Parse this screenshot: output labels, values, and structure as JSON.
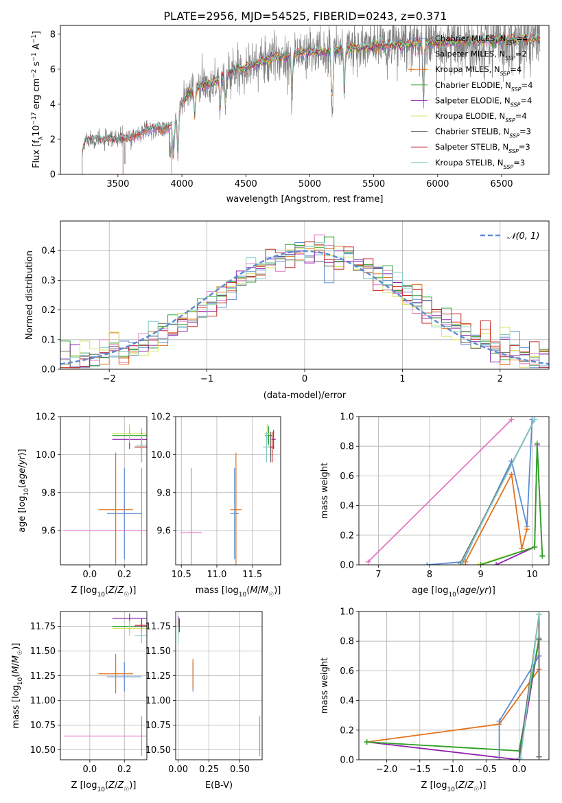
{
  "title": "PLATE=2956, MJD=54525, FIBERID=0243, z=0.371",
  "colors": {
    "Chabrier MILES": "#5b8bd6",
    "Salpeter MILES": "#e377c2",
    "Kroupa MILES": "#e37119",
    "Chabrier ELODIE": "#2ca02c",
    "Salpeter ELODIE": "#8e24aa",
    "Kroupa ELODIE": "#d4e157",
    "Chabrier STELIB": "#666666",
    "Salpeter STELIB": "#c62828",
    "Kroupa STELIB": "#80cbc4",
    "data": "#808080",
    "normal": "#5b8bd6",
    "grid": "#b0b0b0"
  },
  "chart_data": [
    {
      "id": "spectrum",
      "type": "line",
      "xlabel": "wavelength [Angstrom, rest frame]",
      "ylabel": "Flux [fλ10⁻¹⁷ erg cm⁻² s⁻¹ A⁻¹]",
      "xlim": [
        3050,
        6870
      ],
      "ylim": [
        0,
        8.5
      ],
      "xticks": [
        3500,
        4000,
        4500,
        5000,
        5500,
        6000,
        6500
      ],
      "yticks": [
        0,
        2,
        4,
        6,
        8
      ],
      "grid": false,
      "legend_position": "lower-right",
      "legend": [
        {
          "label": "Chabrier MILES, N",
          "sub": "SSP",
          "tail": "=4"
        },
        {
          "label": "Salpeter MILES, N",
          "sub": "SSP",
          "tail": "=2"
        },
        {
          "label": "Kroupa MILES, N",
          "sub": "SSP",
          "tail": "=4"
        },
        {
          "label": "Chabrier ELODIE, N",
          "sub": "SSP",
          "tail": "=4"
        },
        {
          "label": "Salpeter ELODIE, N",
          "sub": "SSP",
          "tail": "=4"
        },
        {
          "label": "Kroupa ELODIE, N",
          "sub": "SSP",
          "tail": "=4"
        },
        {
          "label": "Chabrier STELIB, N",
          "sub": "SSP",
          "tail": "=3"
        },
        {
          "label": "Salpeter STELIB, N",
          "sub": "SSP",
          "tail": "=3"
        },
        {
          "label": "Kroupa STELIB, N",
          "sub": "SSP",
          "tail": "=3"
        }
      ],
      "continuum": {
        "x": [
          3220,
          3250,
          3300,
          3400,
          3500,
          3600,
          3700,
          3800,
          3850,
          3900,
          3950,
          4000,
          4050,
          4100,
          4200,
          4300,
          4400,
          4500,
          4600,
          4700,
          4800,
          4900,
          5000,
          5100,
          5200,
          5300,
          5400,
          5500,
          5600,
          5700,
          5800,
          5900,
          6000,
          6100,
          6200,
          6300,
          6400,
          6500,
          6600,
          6700,
          6800
        ],
        "y": [
          1.2,
          2.0,
          2.0,
          1.95,
          2.0,
          2.1,
          2.4,
          2.7,
          2.5,
          2.7,
          3.3,
          4.0,
          4.6,
          4.9,
          5.1,
          5.5,
          5.9,
          6.1,
          6.4,
          6.6,
          6.7,
          6.9,
          6.95,
          7.0,
          7.1,
          7.2,
          7.2,
          7.3,
          7.35,
          7.4,
          7.45,
          7.5,
          7.5,
          7.55,
          7.6,
          7.6,
          7.65,
          7.7,
          7.7,
          7.7,
          7.7
        ]
      },
      "model_starts": {
        "Chabrier MILES": 3540,
        "Salpeter MILES": 3540,
        "Kroupa MILES": 3540,
        "Chabrier ELODIE": 3920,
        "Salpeter ELODIE": 3920,
        "Kroupa ELODIE": 3920,
        "Chabrier STELIB": 3220,
        "Salpeter STELIB": 3220,
        "Kroupa STELIB": 3220
      }
    },
    {
      "id": "residuals",
      "type": "histogram",
      "xlabel": "(data-model)/error",
      "ylabel": "Normed distribution",
      "xlim": [
        -2.5,
        2.5
      ],
      "ylim": [
        0,
        0.5
      ],
      "xticks": [
        -2,
        -1,
        0,
        1,
        2
      ],
      "yticks": [
        0.0,
        0.1,
        0.2,
        0.3,
        0.4
      ],
      "grid": true,
      "legend_position": "top-right",
      "legend": "𝒩(0, 1)",
      "bin_width": 0.1
    },
    {
      "id": "age_vs_Z",
      "type": "errorbar",
      "xlabel": "Z [log₁₀(Z/Z☉)]",
      "ylabel": "age  [log₁₀(age/yr)]",
      "xlim": [
        -0.17,
        0.33
      ],
      "ylim": [
        9.42,
        10.2
      ],
      "xticks": [
        0.0,
        0.2
      ],
      "yticks": [
        9.6,
        9.8,
        10.0,
        10.2
      ],
      "grid": true,
      "points": [
        {
          "model": "Chabrier MILES",
          "x": 0.2,
          "y": 9.69,
          "xerr": 0.1,
          "yerr": 0.24
        },
        {
          "model": "Salpeter MILES",
          "x": 0.3,
          "y": 9.6,
          "xerr": 0.45,
          "yerr": 0.33
        },
        {
          "model": "Kroupa MILES",
          "x": 0.15,
          "y": 9.71,
          "xerr": 0.1,
          "yerr": 0.3
        },
        {
          "model": "Chabrier ELODIE",
          "x": 0.23,
          "y": 10.1,
          "xerr": 0.1,
          "yerr": 0.05
        },
        {
          "model": "Salpeter ELODIE",
          "x": 0.23,
          "y": 10.08,
          "xerr": 0.1,
          "yerr": 0.05
        },
        {
          "model": "Kroupa ELODIE",
          "x": 0.23,
          "y": 10.11,
          "xerr": 0.1,
          "yerr": 0.05
        },
        {
          "model": "Chabrier STELIB",
          "x": 0.3,
          "y": 10.04,
          "xerr": 0.04,
          "yerr": 0.08
        },
        {
          "model": "Salpeter STELIB",
          "x": 0.3,
          "y": 10.04,
          "xerr": 0.04,
          "yerr": 0.08
        },
        {
          "model": "Kroupa STELIB",
          "x": 0.3,
          "y": 10.05,
          "xerr": 0.03,
          "yerr": 0.09
        }
      ]
    },
    {
      "id": "age_vs_mass",
      "type": "errorbar",
      "xlabel": "mass [log₁₀(M/M☉)]",
      "ylabel": "",
      "xlim": [
        10.42,
        11.9
      ],
      "ylim": [
        9.42,
        10.2
      ],
      "xticks": [
        10.5,
        11.0,
        11.5
      ],
      "yticks": [
        9.6,
        9.8,
        10.0,
        10.2
      ],
      "grid": true,
      "points": [
        {
          "model": "Chabrier MILES",
          "x": 11.25,
          "y": 9.69,
          "xerr": 0.06,
          "yerr": 0.24
        },
        {
          "model": "Salpeter MILES",
          "x": 10.64,
          "y": 9.59,
          "xerr": 0.15,
          "yerr": 0.34
        },
        {
          "model": "Kroupa MILES",
          "x": 11.27,
          "y": 9.71,
          "xerr": 0.08,
          "yerr": 0.3
        },
        {
          "model": "Chabrier ELODIE",
          "x": 11.73,
          "y": 10.1,
          "xerr": 0.05,
          "yerr": 0.05
        },
        {
          "model": "Salpeter ELODIE",
          "x": 11.8,
          "y": 10.08,
          "xerr": 0.03,
          "yerr": 0.05
        },
        {
          "model": "Kroupa ELODIE",
          "x": 11.71,
          "y": 10.11,
          "xerr": 0.05,
          "yerr": 0.05
        },
        {
          "model": "Chabrier STELIB",
          "x": 11.76,
          "y": 10.04,
          "xerr": 0.03,
          "yerr": 0.08
        },
        {
          "model": "Salpeter STELIB",
          "x": 11.78,
          "y": 10.04,
          "xerr": 0.03,
          "yerr": 0.08
        },
        {
          "model": "Kroupa STELIB",
          "x": 11.7,
          "y": 10.04,
          "xerr": 0.05,
          "yerr": 0.08
        }
      ]
    },
    {
      "id": "massweight_vs_age",
      "type": "line",
      "xlabel": "age  [log₁₀(age/yr)]",
      "ylabel": "mass weight",
      "xlim": [
        6.62,
        10.33
      ],
      "ylim": [
        0,
        1.0
      ],
      "xticks": [
        7,
        8,
        9,
        10
      ],
      "yticks": [
        0.0,
        0.2,
        0.4,
        0.6,
        0.8,
        1.0
      ],
      "grid": true,
      "series": [
        {
          "model": "Salpeter MILES",
          "x": [
            6.8,
            9.6
          ],
          "y": [
            0.02,
            0.98
          ]
        },
        {
          "model": "Chabrier MILES",
          "x": [
            7.95,
            8.65,
            9.6,
            9.9,
            10.0
          ],
          "y": [
            0.0,
            0.02,
            0.7,
            0.26,
            0.98
          ]
        },
        {
          "model": "Kroupa MILES",
          "x": [
            8.7,
            8.7,
            9.6,
            9.8,
            9.9
          ],
          "y": [
            0.0,
            0.02,
            0.61,
            0.11,
            0.24
          ]
        },
        {
          "model": "Salpeter ELODIE",
          "x": [
            9.3,
            10.05,
            10.1,
            10.2
          ],
          "y": [
            0.0,
            0.12,
            0.81,
            0.06
          ]
        },
        {
          "model": "Kroupa ELODIE",
          "x": [
            8.95,
            10.05,
            10.1,
            10.2
          ],
          "y": [
            0.0,
            0.12,
            0.82,
            0.06
          ]
        },
        {
          "model": "Chabrier ELODIE",
          "x": [
            9.0,
            10.05,
            10.1,
            10.2
          ],
          "y": [
            0.0,
            0.12,
            0.82,
            0.06
          ]
        },
        {
          "model": "Chabrier STELIB",
          "x": [
            8.6,
            10.05
          ],
          "y": [
            0.01,
            0.98
          ]
        },
        {
          "model": "Kroupa STELIB",
          "x": [
            8.62,
            10.05
          ],
          "y": [
            0.01,
            0.98
          ]
        }
      ]
    },
    {
      "id": "mass_vs_Z",
      "type": "errorbar",
      "xlabel": "Z [log₁₀(Z/Z☉)]",
      "ylabel": "mass [log₁₀(M/M☉)]",
      "xlim": [
        -0.17,
        0.33
      ],
      "ylim": [
        10.4,
        11.9
      ],
      "xticks": [
        0.0,
        0.2
      ],
      "yticks": [
        10.5,
        10.75,
        11.0,
        11.25,
        11.5,
        11.75
      ],
      "grid": true,
      "points": [
        {
          "model": "Chabrier MILES",
          "x": 0.2,
          "y": 11.24,
          "xerr": 0.1,
          "yerr": 0.15
        },
        {
          "model": "Salpeter MILES",
          "x": 0.3,
          "y": 10.64,
          "xerr": 0.45,
          "yerr": 0.2
        },
        {
          "model": "Kroupa MILES",
          "x": 0.15,
          "y": 11.27,
          "xerr": 0.1,
          "yerr": 0.2
        },
        {
          "model": "Chabrier ELODIE",
          "x": 0.23,
          "y": 11.75,
          "xerr": 0.1,
          "yerr": 0.08
        },
        {
          "model": "Salpeter ELODIE",
          "x": 0.23,
          "y": 11.83,
          "xerr": 0.1,
          "yerr": 0.05
        },
        {
          "model": "Kroupa ELODIE",
          "x": 0.23,
          "y": 11.73,
          "xerr": 0.1,
          "yerr": 0.08
        },
        {
          "model": "Chabrier STELIB",
          "x": 0.3,
          "y": 11.75,
          "xerr": 0.04,
          "yerr": 0.07
        },
        {
          "model": "Salpeter STELIB",
          "x": 0.3,
          "y": 11.76,
          "xerr": 0.04,
          "yerr": 0.07
        },
        {
          "model": "Kroupa STELIB",
          "x": 0.3,
          "y": 11.66,
          "xerr": 0.04,
          "yerr": 0.08
        }
      ]
    },
    {
      "id": "mass_vs_ebv",
      "type": "errorbar",
      "xlabel": "E(B-V)",
      "ylabel": "",
      "xlim": [
        -0.02,
        0.68
      ],
      "ylim": [
        10.4,
        11.9
      ],
      "xticks": [
        0.0,
        0.25,
        0.5
      ],
      "yticks": [
        10.5,
        10.75,
        11.0,
        11.25,
        11.5,
        11.75
      ],
      "grid": true,
      "points": [
        {
          "model": "Chabrier MILES",
          "x": 0.12,
          "y": 11.24,
          "xerr": 0.0,
          "yerr": 0.15
        },
        {
          "model": "Salpeter MILES",
          "x": 0.66,
          "y": 10.64,
          "xerr": 0.0,
          "yerr": 0.2
        },
        {
          "model": "Kroupa MILES",
          "x": 0.12,
          "y": 11.27,
          "xerr": 0.0,
          "yerr": 0.15
        },
        {
          "model": "Chabrier ELODIE",
          "x": 0.0,
          "y": 11.75,
          "xerr": 0.0,
          "yerr": 0.08
        },
        {
          "model": "Salpeter ELODIE",
          "x": 0.0,
          "y": 11.8,
          "xerr": 0.0,
          "yerr": 0.05
        },
        {
          "model": "Kroupa ELODIE",
          "x": 0.0,
          "y": 11.72,
          "xerr": 0.0,
          "yerr": 0.08
        },
        {
          "model": "Chabrier STELIB",
          "x": 0.0,
          "y": 11.75,
          "xerr": 0.0,
          "yerr": 0.07
        },
        {
          "model": "Salpeter STELIB",
          "x": 0.01,
          "y": 11.76,
          "xerr": 0.0,
          "yerr": 0.07
        },
        {
          "model": "Kroupa STELIB",
          "x": 0.0,
          "y": 11.66,
          "xerr": 0.0,
          "yerr": 0.08
        }
      ]
    },
    {
      "id": "massweight_vs_Z",
      "type": "line",
      "xlabel": "Z [log₁₀(Z/Z☉)]",
      "ylabel": "mass weight",
      "xlim": [
        -2.42,
        0.45
      ],
      "ylim": [
        0,
        1.0
      ],
      "xticks": [
        -2.0,
        -1.5,
        -1.0,
        -0.5,
        0.0
      ],
      "yticks": [
        0.0,
        0.2,
        0.4,
        0.6,
        0.8,
        1.0
      ],
      "grid": true,
      "series": [
        {
          "model": "Kroupa MILES",
          "x": [
            -2.3,
            -0.3,
            0.3,
            0.3
          ],
          "y": [
            0.12,
            0.24,
            0.61,
            0.81
          ]
        },
        {
          "model": "Salpeter ELODIE",
          "x": [
            -2.3,
            0.0,
            0.3,
            0.3
          ],
          "y": [
            0.12,
            0.0,
            0.81,
            0.02
          ]
        },
        {
          "model": "Kroupa ELODIE",
          "x": [
            -2.3,
            0.0,
            0.3,
            0.3
          ],
          "y": [
            0.12,
            0.06,
            0.82,
            0.02
          ]
        },
        {
          "model": "Chabrier ELODIE",
          "x": [
            -2.3,
            0.0,
            0.3
          ],
          "y": [
            0.12,
            0.06,
            0.82
          ]
        },
        {
          "model": "Chabrier MILES",
          "x": [
            -0.3,
            -0.3,
            0.3,
            0.3
          ],
          "y": [
            0.0,
            0.26,
            0.7,
            0.02
          ]
        },
        {
          "model": "Chabrier STELIB",
          "x": [
            0.0,
            0.3,
            0.3
          ],
          "y": [
            0.01,
            0.98,
            0.02
          ]
        },
        {
          "model": "Kroupa STELIB",
          "x": [
            0.02,
            0.3
          ],
          "y": [
            0.01,
            0.98
          ]
        }
      ]
    }
  ]
}
